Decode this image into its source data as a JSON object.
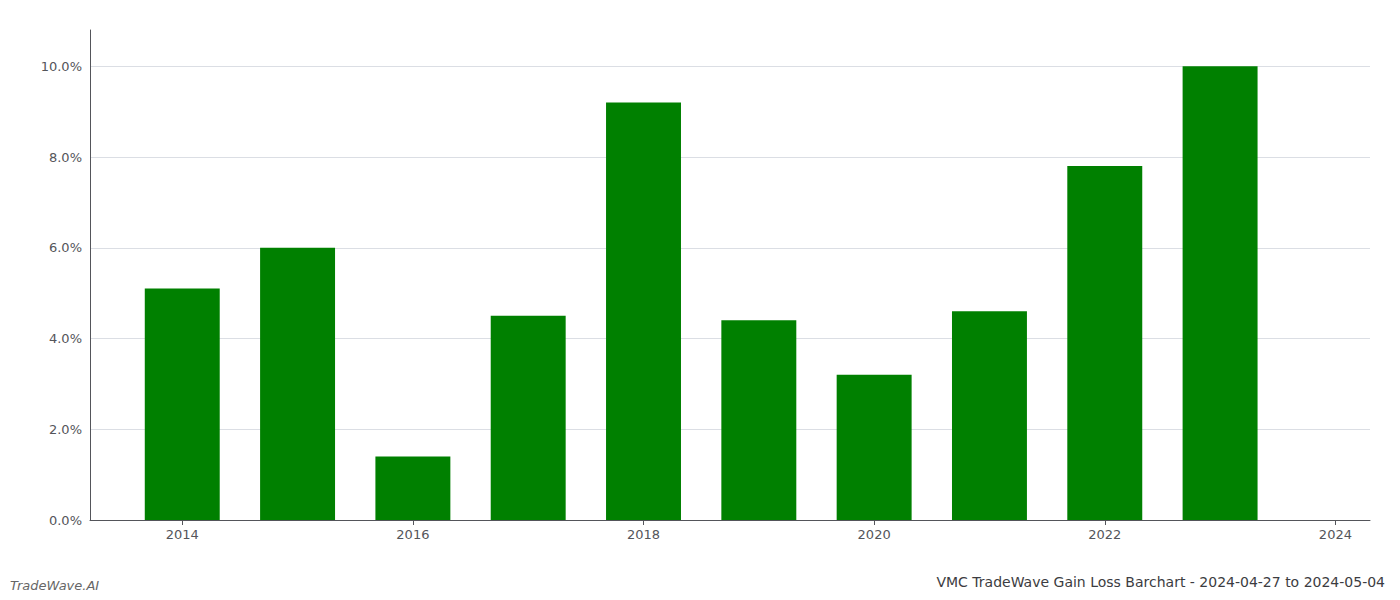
{
  "chart_data": {
    "type": "bar",
    "title": "VMC TradeWave Gain Loss Barchart - 2024-04-27 to 2024-05-04",
    "annotations": [
      "TradeWave.AI"
    ],
    "x": [
      2014,
      2015,
      2016,
      2017,
      2018,
      2019,
      2020,
      2021,
      2022,
      2023
    ],
    "values": [
      0.051,
      0.06,
      0.014,
      0.045,
      0.092,
      0.044,
      0.032,
      0.046,
      0.078,
      0.1
    ],
    "color": "#008000",
    "xlim": [
      2013.2,
      2024.3
    ],
    "xticks": [
      2014,
      2016,
      2018,
      2020,
      2022,
      2024
    ],
    "ylim": [
      0,
      0.108
    ],
    "yticks": [
      {
        "value": 0.0,
        "label": "0.0%"
      },
      {
        "value": 0.02,
        "label": "2.0%"
      },
      {
        "value": 0.04,
        "label": "4.0%"
      },
      {
        "value": 0.06,
        "label": "6.0%"
      },
      {
        "value": 0.08,
        "label": "8.0%"
      },
      {
        "value": 0.1,
        "label": "10.0%"
      }
    ],
    "grid": true
  }
}
